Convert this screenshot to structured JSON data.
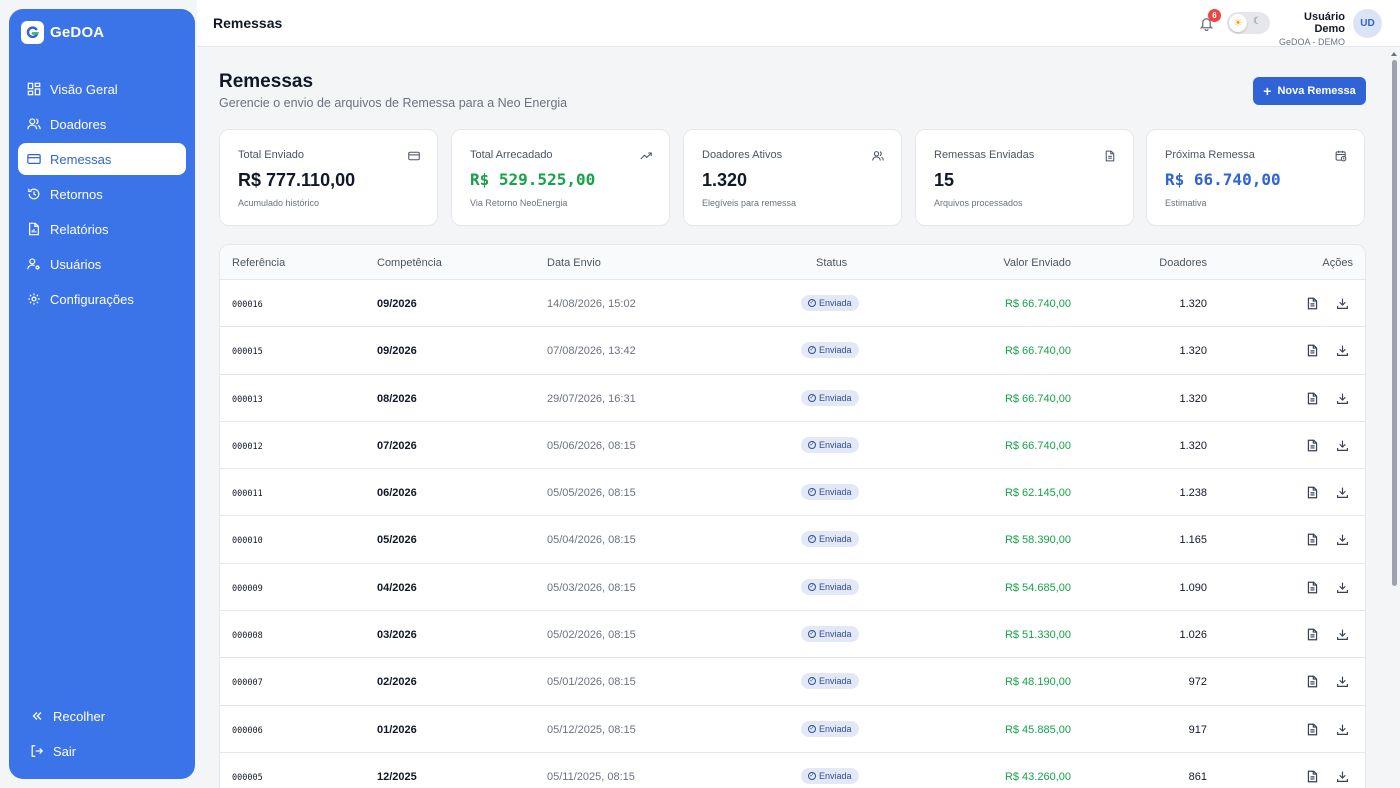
{
  "sidebar": {
    "brand": "GeDOA",
    "items": [
      {
        "label": "Visão Geral",
        "icon": "grid-icon",
        "active": false
      },
      {
        "label": "Doadores",
        "icon": "users-icon",
        "active": false
      },
      {
        "label": "Remessas",
        "icon": "card-icon",
        "active": true
      },
      {
        "label": "Retornos",
        "icon": "history-icon",
        "active": false
      },
      {
        "label": "Relatórios",
        "icon": "report-icon",
        "active": false
      },
      {
        "label": "Usuários",
        "icon": "user-cog-icon",
        "active": false
      },
      {
        "label": "Configurações",
        "icon": "gear-icon",
        "active": false
      }
    ],
    "collapse_label": "Recolher",
    "logout_label": "Sair"
  },
  "header": {
    "title": "Remessas",
    "notification_count": "6",
    "user_name": "Usuário Demo",
    "user_org": "GeDOA - DEMO",
    "avatar_initials": "UD"
  },
  "page": {
    "title": "Remessas",
    "subtitle": "Gerencie o envio de arquivos de Remessa para a Neo Energia",
    "new_button": "Nova Remessa"
  },
  "stats": [
    {
      "label": "Total Enviado",
      "value": "R$ 777.110,00",
      "note": "Acumulado histórico",
      "icon": "card-icon"
    },
    {
      "label": "Total Arrecadado",
      "value": "R$ 529.525,00",
      "note": "Via Retorno NeoEnergia",
      "icon": "trending-up-icon"
    },
    {
      "label": "Doadores Ativos",
      "value": "1.320",
      "note": "Elegíveis para remessa",
      "icon": "users-icon"
    },
    {
      "label": "Remessas Enviadas",
      "value": "15",
      "note": "Arquivos processados",
      "icon": "file-icon"
    },
    {
      "label": "Próxima Remessa",
      "value": "R$ 66.740,00",
      "note": "Estimativa",
      "icon": "calendar-clock-icon"
    }
  ],
  "table": {
    "columns": [
      "Referência",
      "Competência",
      "Data Envio",
      "Status",
      "Valor Enviado",
      "Doadores",
      "Ações"
    ],
    "rows": [
      {
        "ref": "000016",
        "comp": "09/2026",
        "date": "14/08/2026, 15:02",
        "status": "Enviada",
        "value": "R$ 66.740,00",
        "donors": "1.320"
      },
      {
        "ref": "000015",
        "comp": "09/2026",
        "date": "07/08/2026, 13:42",
        "status": "Enviada",
        "value": "R$ 66.740,00",
        "donors": "1.320"
      },
      {
        "ref": "000013",
        "comp": "08/2026",
        "date": "29/07/2026, 16:31",
        "status": "Enviada",
        "value": "R$ 66.740,00",
        "donors": "1.320"
      },
      {
        "ref": "000012",
        "comp": "07/2026",
        "date": "05/06/2026, 08:15",
        "status": "Enviada",
        "value": "R$ 66.740,00",
        "donors": "1.320"
      },
      {
        "ref": "000011",
        "comp": "06/2026",
        "date": "05/05/2026, 08:15",
        "status": "Enviada",
        "value": "R$ 62.145,00",
        "donors": "1.238"
      },
      {
        "ref": "000010",
        "comp": "05/2026",
        "date": "05/04/2026, 08:15",
        "status": "Enviada",
        "value": "R$ 58.390,00",
        "donors": "1.165"
      },
      {
        "ref": "000009",
        "comp": "04/2026",
        "date": "05/03/2026, 08:15",
        "status": "Enviada",
        "value": "R$ 54.685,00",
        "donors": "1.090"
      },
      {
        "ref": "000008",
        "comp": "03/2026",
        "date": "05/02/2026, 08:15",
        "status": "Enviada",
        "value": "R$ 51.330,00",
        "donors": "1.026"
      },
      {
        "ref": "000007",
        "comp": "02/2026",
        "date": "05/01/2026, 08:15",
        "status": "Enviada",
        "value": "R$ 48.190,00",
        "donors": "972"
      },
      {
        "ref": "000006",
        "comp": "01/2026",
        "date": "05/12/2025, 08:15",
        "status": "Enviada",
        "value": "R$ 45.885,00",
        "donors": "917"
      },
      {
        "ref": "000005",
        "comp": "12/2025",
        "date": "05/11/2025, 08:15",
        "status": "Enviada",
        "value": "R$ 43.260,00",
        "donors": "861"
      }
    ]
  },
  "colors": {
    "primary": "#3b73e8",
    "accent": "#2f63d6",
    "success": "#16a34a",
    "badge": "#ef4444"
  }
}
